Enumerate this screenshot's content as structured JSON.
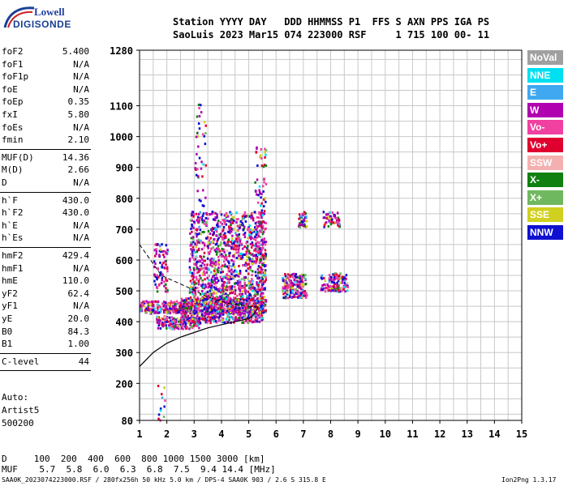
{
  "logo": {
    "line1": "Lowell",
    "line2": "DIGISONDE"
  },
  "header": {
    "line1": "Station YYYY DAY   DDD HHMMSS P1  FFS S AXN PPS IGA PS",
    "line2": "SaoLuis 2023 Mar15 074 223000 RSF     1 715 100 00- 11"
  },
  "params_group1": [
    {
      "name": "foF2",
      "value": "5.400"
    },
    {
      "name": "foF1",
      "value": "N/A"
    },
    {
      "name": "foF1p",
      "value": "N/A"
    },
    {
      "name": "foE",
      "value": "N/A"
    },
    {
      "name": "foEp",
      "value": "0.35"
    },
    {
      "name": "fxI",
      "value": "5.80"
    },
    {
      "name": "foEs",
      "value": "N/A"
    },
    {
      "name": "fmin",
      "value": "2.10"
    }
  ],
  "params_group2": [
    {
      "name": "MUF(D)",
      "value": "14.36"
    },
    {
      "name": "M(D)",
      "value": "2.66"
    },
    {
      "name": "D",
      "value": "N/A"
    }
  ],
  "params_group3": [
    {
      "name": "h`F",
      "value": "430.0"
    },
    {
      "name": "h`F2",
      "value": "430.0"
    },
    {
      "name": "h`E",
      "value": "N/A"
    },
    {
      "name": "h`Es",
      "value": "N/A"
    }
  ],
  "params_group4": [
    {
      "name": "hmF2",
      "value": "429.4"
    },
    {
      "name": "hmF1",
      "value": "N/A"
    },
    {
      "name": "hmE",
      "value": "110.0"
    },
    {
      "name": "yF2",
      "value": "62.4"
    },
    {
      "name": "yF1",
      "value": "N/A"
    },
    {
      "name": "yE",
      "value": "20.0"
    },
    {
      "name": "B0",
      "value": "84.3"
    },
    {
      "name": "B1",
      "value": "1.00"
    }
  ],
  "params_group5": [
    {
      "name": "C-level",
      "value": "44"
    }
  ],
  "autoscale": {
    "line1": "Auto:",
    "line2": "Artist5",
    "line3": "500200"
  },
  "legend": [
    {
      "label": "NoVal",
      "color": "#a0a0a0"
    },
    {
      "label": "NNE",
      "color": "#00e0f0"
    },
    {
      "label": "E",
      "color": "#40a8f0"
    },
    {
      "label": "W",
      "color": "#b000b0"
    },
    {
      "label": "Vo-",
      "color": "#f040a0"
    },
    {
      "label": "Vo+",
      "color": "#e00030"
    },
    {
      "label": "SSW",
      "color": "#f4b0b0"
    },
    {
      "label": "X-",
      "color": "#108010"
    },
    {
      "label": "X+",
      "color": "#70b860"
    },
    {
      "label": "SSE",
      "color": "#d0d020"
    },
    {
      "label": "NNW",
      "color": "#1010d0"
    }
  ],
  "bottom": {
    "d_row": "D     100  200  400  600  800 1000 1500 3000 [km]",
    "muf_row": "MUF    5.7  5.8  6.0  6.3  6.8  7.5  9.4 14.4 [MHz]"
  },
  "footer": {
    "left": "SAA0K_2023074223000.RSF / 280fx256h 50 kHz 5.0 km / DPS-4 SAA0K 903 / 2.6 S 315.8 E",
    "right": "Ion2Png 1.3.17"
  },
  "chart_data": {
    "type": "scatter",
    "x": {
      "min": 1,
      "max": 15,
      "ticks": [
        1,
        2,
        3,
        4,
        5,
        6,
        7,
        8,
        9,
        10,
        11,
        12,
        13,
        14,
        15
      ]
    },
    "y": {
      "min": 80,
      "max": 1280,
      "ticks": [
        80,
        200,
        300,
        400,
        500,
        600,
        700,
        800,
        900,
        1000,
        1100,
        1280
      ]
    },
    "profile_curve": [
      [
        1.0,
        255
      ],
      [
        1.5,
        300
      ],
      [
        2.0,
        330
      ],
      [
        2.5,
        350
      ],
      [
        3.0,
        365
      ],
      [
        3.5,
        380
      ],
      [
        4.0,
        390
      ],
      [
        4.5,
        400
      ],
      [
        5.0,
        410
      ],
      [
        5.2,
        425
      ],
      [
        5.3,
        440
      ],
      [
        5.35,
        450
      ]
    ],
    "trace_curve_dashed": [
      [
        1.0,
        650
      ],
      [
        1.4,
        600
      ],
      [
        1.8,
        550
      ],
      [
        2.3,
        530
      ],
      [
        2.8,
        510
      ],
      [
        3.5,
        480
      ],
      [
        4.2,
        460
      ],
      [
        5.0,
        450
      ],
      [
        5.4,
        447
      ]
    ],
    "clusters": [
      {
        "xmin": 2.8,
        "xmax": 5.6,
        "ymin": 430,
        "ymax": 760,
        "n": 1400
      },
      {
        "xmin": 2.5,
        "xmax": 5.5,
        "ymin": 400,
        "ymax": 480,
        "n": 600
      },
      {
        "xmin": 1.0,
        "xmax": 2.9,
        "ymin": 430,
        "ymax": 470,
        "n": 220
      },
      {
        "xmin": 1.6,
        "xmax": 3.2,
        "ymin": 380,
        "ymax": 420,
        "n": 160
      },
      {
        "xmin": 1.5,
        "xmax": 2.0,
        "ymin": 500,
        "ymax": 660,
        "n": 80
      },
      {
        "xmin": 6.2,
        "xmax": 7.1,
        "ymin": 480,
        "ymax": 560,
        "n": 180
      },
      {
        "xmin": 6.8,
        "xmax": 7.1,
        "ymin": 710,
        "ymax": 760,
        "n": 40
      },
      {
        "xmin": 7.6,
        "xmax": 8.6,
        "ymin": 500,
        "ymax": 560,
        "n": 120
      },
      {
        "xmin": 7.7,
        "xmax": 8.3,
        "ymin": 710,
        "ymax": 760,
        "n": 60
      },
      {
        "xmin": 5.2,
        "xmax": 5.6,
        "ymin": 430,
        "ymax": 980,
        "n": 120
      },
      {
        "xmin": 3.0,
        "xmax": 3.4,
        "ymin": 760,
        "ymax": 1110,
        "n": 40
      },
      {
        "xmin": 1.6,
        "xmax": 1.9,
        "ymin": 80,
        "ymax": 200,
        "n": 12
      }
    ]
  }
}
